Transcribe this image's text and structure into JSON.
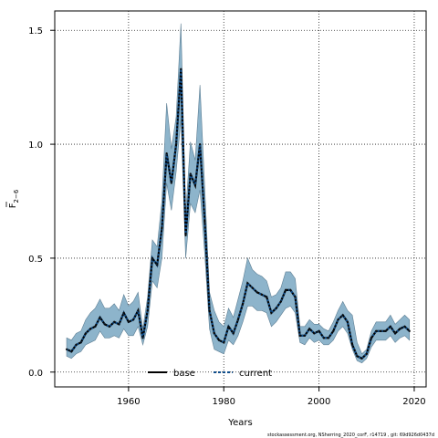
{
  "chart_data": {
    "type": "line",
    "xlabel": "Years",
    "ylabel_main": "F",
    "ylabel_sub": "2−6",
    "xlim": [
      1944.5,
      2022.5
    ],
    "ylim": [
      -0.065,
      1.585
    ],
    "xticks": [
      1960,
      1980,
      2000,
      2020
    ],
    "xtick_labels": [
      "1960",
      "1980",
      "2000",
      "2020"
    ],
    "yticks": [
      0.0,
      0.5,
      1.0,
      1.5
    ],
    "ytick_labels": [
      "0.0",
      "0.5",
      "1.0",
      "1.5"
    ],
    "grid": true,
    "legend_position": "bottom",
    "colors": {
      "band_fill": "#8db4cb",
      "band_edge": "#5e7f94",
      "base_line": "#000000",
      "current_line": "#104e8b",
      "current_dots": "#0a0a0a"
    },
    "x": [
      1947,
      1948,
      1949,
      1950,
      1951,
      1952,
      1953,
      1954,
      1955,
      1956,
      1957,
      1958,
      1959,
      1960,
      1961,
      1962,
      1963,
      1964,
      1965,
      1966,
      1967,
      1968,
      1969,
      1970,
      1971,
      1972,
      1973,
      1974,
      1975,
      1976,
      1977,
      1978,
      1979,
      1980,
      1981,
      1982,
      1983,
      1984,
      1985,
      1986,
      1987,
      1988,
      1989,
      1990,
      1991,
      1992,
      1993,
      1994,
      1995,
      1996,
      1997,
      1998,
      1999,
      2000,
      2001,
      2002,
      2003,
      2004,
      2005,
      2006,
      2007,
      2008,
      2009,
      2010,
      2011,
      2012,
      2013,
      2014,
      2015,
      2016,
      2017,
      2018,
      2019
    ],
    "series": [
      {
        "name": "base",
        "line": "solid",
        "values": [
          0.1,
          0.09,
          0.12,
          0.13,
          0.17,
          0.19,
          0.2,
          0.24,
          0.21,
          0.2,
          0.22,
          0.21,
          0.26,
          0.22,
          0.23,
          0.27,
          0.15,
          0.27,
          0.5,
          0.47,
          0.63,
          0.96,
          0.83,
          1.0,
          1.33,
          0.6,
          0.87,
          0.82,
          1.0,
          0.66,
          0.27,
          0.17,
          0.14,
          0.13,
          0.2,
          0.17,
          0.23,
          0.3,
          0.39,
          0.37,
          0.35,
          0.34,
          0.33,
          0.26,
          0.28,
          0.31,
          0.36,
          0.36,
          0.33,
          0.16,
          0.16,
          0.19,
          0.17,
          0.18,
          0.15,
          0.15,
          0.18,
          0.23,
          0.25,
          0.22,
          0.12,
          0.07,
          0.06,
          0.08,
          0.15,
          0.18,
          0.18,
          0.18,
          0.2,
          0.17,
          0.19,
          0.2,
          0.18
        ]
      },
      {
        "name": "current",
        "line": "dotted",
        "values": [
          0.1,
          0.09,
          0.12,
          0.13,
          0.17,
          0.19,
          0.2,
          0.24,
          0.21,
          0.2,
          0.22,
          0.21,
          0.26,
          0.22,
          0.23,
          0.27,
          0.15,
          0.27,
          0.5,
          0.47,
          0.63,
          0.96,
          0.83,
          1.0,
          1.33,
          0.6,
          0.87,
          0.82,
          1.0,
          0.66,
          0.27,
          0.17,
          0.14,
          0.13,
          0.2,
          0.17,
          0.23,
          0.3,
          0.39,
          0.37,
          0.35,
          0.34,
          0.33,
          0.26,
          0.28,
          0.31,
          0.36,
          0.36,
          0.33,
          0.16,
          0.16,
          0.19,
          0.17,
          0.18,
          0.15,
          0.15,
          0.18,
          0.23,
          0.25,
          0.22,
          0.12,
          0.07,
          0.06,
          0.08,
          0.15,
          0.18,
          0.18,
          0.18,
          0.2,
          0.17,
          0.19,
          0.2,
          0.18
        ]
      }
    ],
    "band_upper": [
      0.15,
      0.14,
      0.17,
      0.18,
      0.23,
      0.26,
      0.28,
      0.32,
      0.28,
      0.28,
      0.3,
      0.27,
      0.34,
      0.29,
      0.31,
      0.35,
      0.19,
      0.33,
      0.58,
      0.55,
      0.75,
      1.18,
      0.98,
      1.12,
      1.53,
      0.7,
      1.01,
      0.93,
      1.26,
      0.81,
      0.35,
      0.27,
      0.22,
      0.2,
      0.28,
      0.24,
      0.32,
      0.4,
      0.5,
      0.45,
      0.43,
      0.42,
      0.4,
      0.33,
      0.34,
      0.37,
      0.44,
      0.44,
      0.41,
      0.2,
      0.2,
      0.23,
      0.21,
      0.21,
      0.19,
      0.18,
      0.22,
      0.27,
      0.31,
      0.27,
      0.25,
      0.13,
      0.08,
      0.1,
      0.18,
      0.22,
      0.22,
      0.22,
      0.25,
      0.21,
      0.23,
      0.25,
      0.23
    ],
    "band_lower": [
      0.07,
      0.06,
      0.08,
      0.09,
      0.12,
      0.13,
      0.14,
      0.18,
      0.15,
      0.15,
      0.16,
      0.15,
      0.19,
      0.16,
      0.16,
      0.2,
      0.12,
      0.2,
      0.4,
      0.37,
      0.5,
      0.83,
      0.71,
      0.88,
      1.11,
      0.5,
      0.74,
      0.7,
      0.8,
      0.52,
      0.19,
      0.1,
      0.09,
      0.08,
      0.14,
      0.12,
      0.16,
      0.22,
      0.29,
      0.29,
      0.27,
      0.27,
      0.26,
      0.2,
      0.22,
      0.25,
      0.28,
      0.29,
      0.26,
      0.13,
      0.12,
      0.15,
      0.13,
      0.14,
      0.12,
      0.12,
      0.14,
      0.18,
      0.2,
      0.17,
      0.1,
      0.05,
      0.04,
      0.06,
      0.11,
      0.14,
      0.14,
      0.14,
      0.16,
      0.13,
      0.15,
      0.16,
      0.14
    ]
  },
  "legend": {
    "base_label": "base",
    "current_label": "current"
  },
  "footer": {
    "text": "stockassessment.org,  NSherring_2020_corF,  r14719 ,  git:  69d926d0437d"
  }
}
